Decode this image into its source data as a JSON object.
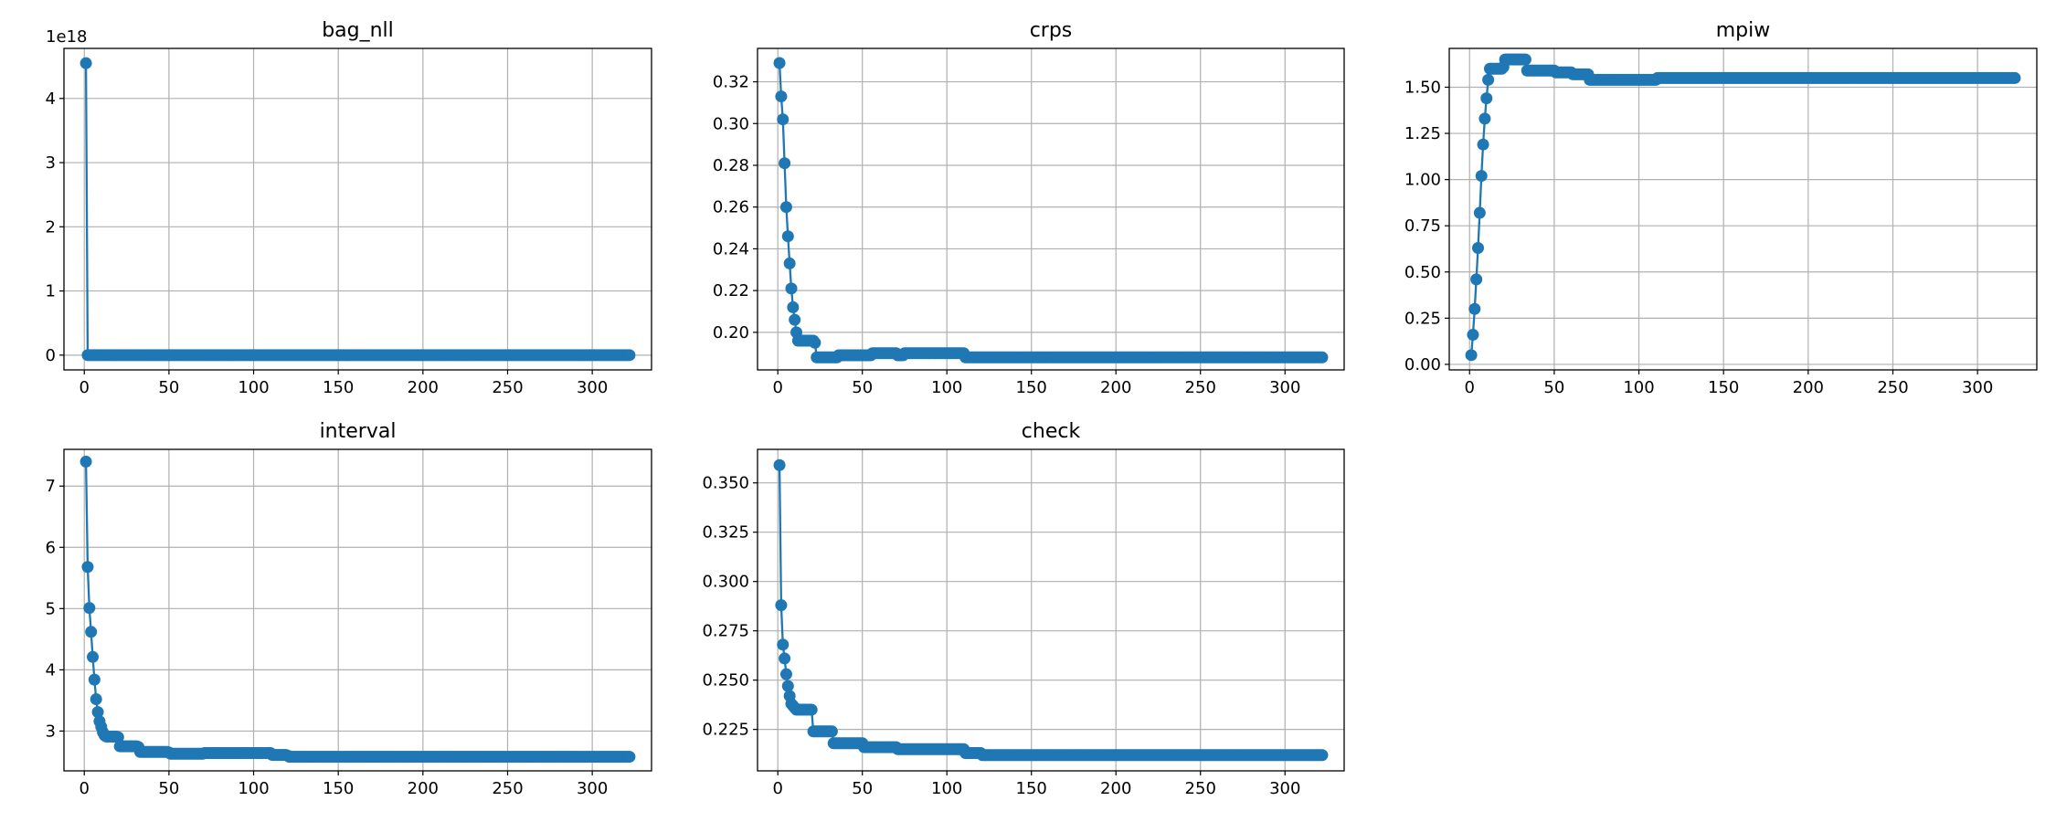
{
  "figure": {
    "series_color": "#1f77b4",
    "grid_color": "#b0b0b0"
  },
  "chart_data": [
    {
      "type": "line",
      "title": "bag_nll",
      "xlabel": "",
      "ylabel": "",
      "offset_label": "1e18",
      "xlim": [
        -12,
        335
      ],
      "ylim": [
        -0.23,
        4.78
      ],
      "grid": true,
      "x_ticks": [
        0,
        50,
        100,
        150,
        200,
        250,
        300
      ],
      "x_tick_labels": [
        "0",
        "50",
        "100",
        "150",
        "200",
        "250",
        "300"
      ],
      "y_ticks": [
        0,
        1,
        2,
        3,
        4
      ],
      "y_tick_labels": [
        "0",
        "1",
        "2",
        "3",
        "4"
      ],
      "x_max": 322,
      "series": [
        {
          "marker": "circle",
          "points": [
            [
              1,
              4.55
            ],
            [
              2,
              0.0
            ],
            [
              322,
              0.0
            ]
          ]
        }
      ]
    },
    {
      "type": "line",
      "title": "crps",
      "xlabel": "",
      "ylabel": "",
      "xlim": [
        -12,
        335
      ],
      "ylim": [
        0.182,
        0.336
      ],
      "grid": true,
      "x_ticks": [
        0,
        50,
        100,
        150,
        200,
        250,
        300
      ],
      "x_tick_labels": [
        "0",
        "50",
        "100",
        "150",
        "200",
        "250",
        "300"
      ],
      "y_ticks": [
        0.2,
        0.22,
        0.24,
        0.26,
        0.28,
        0.3,
        0.32
      ],
      "y_tick_labels": [
        "0.20",
        "0.22",
        "0.24",
        "0.26",
        "0.28",
        "0.30",
        "0.32"
      ],
      "x_max": 322,
      "series": [
        {
          "marker": "circle",
          "points": [
            [
              1,
              0.329
            ],
            [
              2,
              0.313
            ],
            [
              3,
              0.302
            ],
            [
              4,
              0.281
            ],
            [
              5,
              0.26
            ],
            [
              6,
              0.246
            ],
            [
              7,
              0.233
            ],
            [
              8,
              0.221
            ],
            [
              9,
              0.212
            ],
            [
              10,
              0.206
            ],
            [
              11,
              0.2
            ],
            [
              12,
              0.196
            ],
            [
              22,
              0.195
            ],
            [
              23,
              0.188
            ],
            [
              35,
              0.188
            ],
            [
              36,
              0.189
            ],
            [
              55,
              0.189
            ],
            [
              56,
              0.19
            ],
            [
              70,
              0.19
            ],
            [
              71,
              0.189
            ],
            [
              75,
              0.19
            ],
            [
              110,
              0.19
            ],
            [
              111,
              0.188
            ],
            [
              322,
              0.188
            ]
          ]
        }
      ]
    },
    {
      "type": "line",
      "title": "mpiw",
      "xlabel": "",
      "ylabel": "",
      "xlim": [
        -12,
        335
      ],
      "ylim": [
        -0.03,
        1.71
      ],
      "grid": true,
      "x_ticks": [
        0,
        50,
        100,
        150,
        200,
        250,
        300
      ],
      "x_tick_labels": [
        "0",
        "50",
        "100",
        "150",
        "200",
        "250",
        "300"
      ],
      "y_ticks": [
        0.0,
        0.25,
        0.5,
        0.75,
        1.0,
        1.25,
        1.5
      ],
      "y_tick_labels": [
        "0.00",
        "0.25",
        "0.50",
        "0.75",
        "1.00",
        "1.25",
        "1.50"
      ],
      "x_max": 322,
      "series": [
        {
          "marker": "circle",
          "points": [
            [
              1,
              0.05
            ],
            [
              2,
              0.16
            ],
            [
              3,
              0.3
            ],
            [
              4,
              0.46
            ],
            [
              5,
              0.63
            ],
            [
              6,
              0.82
            ],
            [
              7,
              1.02
            ],
            [
              8,
              1.19
            ],
            [
              9,
              1.33
            ],
            [
              10,
              1.44
            ],
            [
              11,
              1.54
            ],
            [
              12,
              1.6
            ],
            [
              20,
              1.61
            ],
            [
              21,
              1.65
            ],
            [
              33,
              1.65
            ],
            [
              34,
              1.59
            ],
            [
              50,
              1.59
            ],
            [
              51,
              1.58
            ],
            [
              60,
              1.58
            ],
            [
              61,
              1.57
            ],
            [
              70,
              1.57
            ],
            [
              71,
              1.54
            ],
            [
              110,
              1.54
            ],
            [
              111,
              1.55
            ],
            [
              322,
              1.55
            ]
          ]
        }
      ]
    },
    {
      "type": "line",
      "title": "interval",
      "xlabel": "",
      "ylabel": "",
      "xlim": [
        -12,
        335
      ],
      "ylim": [
        2.35,
        7.6
      ],
      "grid": true,
      "x_ticks": [
        0,
        50,
        100,
        150,
        200,
        250,
        300
      ],
      "x_tick_labels": [
        "0",
        "50",
        "100",
        "150",
        "200",
        "250",
        "300"
      ],
      "y_ticks": [
        3,
        4,
        5,
        6,
        7
      ],
      "y_tick_labels": [
        "3",
        "4",
        "5",
        "6",
        "7"
      ],
      "x_max": 322,
      "series": [
        {
          "marker": "circle",
          "points": [
            [
              1,
              7.4
            ],
            [
              2,
              5.68
            ],
            [
              3,
              5.01
            ],
            [
              4,
              4.62
            ],
            [
              5,
              4.21
            ],
            [
              6,
              3.84
            ],
            [
              7,
              3.52
            ],
            [
              8,
              3.31
            ],
            [
              9,
              3.16
            ],
            [
              10,
              3.07
            ],
            [
              11,
              2.98
            ],
            [
              12,
              2.93
            ],
            [
              13,
              2.91
            ],
            [
              20,
              2.9
            ],
            [
              21,
              2.75
            ],
            [
              32,
              2.74
            ],
            [
              33,
              2.66
            ],
            [
              50,
              2.65
            ],
            [
              51,
              2.63
            ],
            [
              70,
              2.63
            ],
            [
              71,
              2.64
            ],
            [
              110,
              2.64
            ],
            [
              111,
              2.61
            ],
            [
              120,
              2.6
            ],
            [
              121,
              2.58
            ],
            [
              322,
              2.58
            ]
          ]
        }
      ]
    },
    {
      "type": "line",
      "title": "check",
      "xlabel": "",
      "ylabel": "",
      "xlim": [
        -12,
        335
      ],
      "ylim": [
        0.204,
        0.367
      ],
      "grid": true,
      "x_ticks": [
        0,
        50,
        100,
        150,
        200,
        250,
        300
      ],
      "x_tick_labels": [
        "0",
        "50",
        "100",
        "150",
        "200",
        "250",
        "300"
      ],
      "y_ticks": [
        0.225,
        0.25,
        0.275,
        0.3,
        0.325,
        0.35
      ],
      "y_tick_labels": [
        "0.225",
        "0.250",
        "0.275",
        "0.300",
        "0.325",
        "0.350"
      ],
      "x_max": 322,
      "series": [
        {
          "marker": "circle",
          "points": [
            [
              1,
              0.359
            ],
            [
              2,
              0.288
            ],
            [
              3,
              0.268
            ],
            [
              4,
              0.261
            ],
            [
              5,
              0.253
            ],
            [
              6,
              0.247
            ],
            [
              7,
              0.242
            ],
            [
              8,
              0.238
            ],
            [
              9,
              0.237
            ],
            [
              10,
              0.236
            ],
            [
              11,
              0.235
            ],
            [
              20,
              0.235
            ],
            [
              21,
              0.224
            ],
            [
              32,
              0.224
            ],
            [
              33,
              0.218
            ],
            [
              50,
              0.218
            ],
            [
              51,
              0.216
            ],
            [
              70,
              0.216
            ],
            [
              71,
              0.215
            ],
            [
              110,
              0.215
            ],
            [
              111,
              0.213
            ],
            [
              120,
              0.213
            ],
            [
              121,
              0.212
            ],
            [
              322,
              0.212
            ]
          ]
        }
      ]
    }
  ]
}
